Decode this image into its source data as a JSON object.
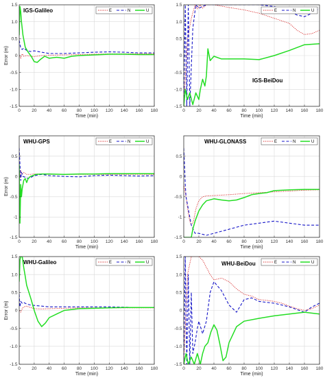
{
  "figure": {
    "colors": {
      "E": "#d62020",
      "N": "#1515c8",
      "U": "#22dd22",
      "grid": "#d9d9d9",
      "axis": "#333333"
    }
  },
  "chart_data": [
    {
      "type": "line",
      "title": "IGS-Galileo",
      "xlabel": "Time (min)",
      "ylabel": "Error (m)",
      "xlim": [
        0,
        180
      ],
      "ylim": [
        -1.5,
        1.5
      ],
      "xticks": [
        0,
        20,
        40,
        60,
        80,
        100,
        120,
        140,
        160,
        180
      ],
      "yticks": [
        -1.5,
        -1,
        -0.5,
        0,
        0.5,
        1,
        1.5
      ],
      "ytick_labels": [
        "-1.5",
        "-1.0",
        "-0.5",
        "0",
        "0.5",
        "1.0",
        "1.5"
      ],
      "grid": true,
      "legend_position": "top-right",
      "series": [
        {
          "name": "E",
          "style": "dotted",
          "x": [
            0,
            2,
            4,
            6,
            10,
            15,
            20,
            30,
            40,
            60,
            80,
            100,
            120,
            140,
            160,
            180
          ],
          "y": [
            0.02,
            -0.08,
            0.05,
            -0.02,
            0.0,
            -0.02,
            -0.03,
            0.0,
            0.01,
            0.02,
            0.03,
            0.04,
            0.05,
            0.05,
            0.05,
            0.05
          ]
        },
        {
          "name": "N",
          "style": "dashed",
          "x": [
            0,
            2,
            4,
            6,
            10,
            15,
            20,
            30,
            40,
            60,
            80,
            100,
            120,
            140,
            160,
            180
          ],
          "y": [
            0.45,
            0.22,
            0.18,
            0.22,
            0.15,
            0.12,
            0.14,
            0.1,
            0.06,
            0.06,
            0.08,
            0.1,
            0.11,
            0.1,
            0.08,
            0.08
          ]
        },
        {
          "name": "U",
          "style": "solid",
          "x": [
            0,
            1,
            2,
            3,
            5,
            8,
            12,
            16,
            20,
            24,
            28,
            34,
            40,
            50,
            60,
            70,
            80,
            100,
            120,
            140,
            160,
            180
          ],
          "y": [
            0.6,
            1.45,
            1.3,
            1.0,
            0.6,
            0.25,
            0.1,
            -0.02,
            -0.18,
            -0.2,
            -0.12,
            -0.02,
            -0.08,
            -0.05,
            -0.08,
            -0.02,
            0.0,
            0.02,
            0.04,
            0.04,
            0.03,
            0.03
          ]
        }
      ]
    },
    {
      "type": "line",
      "title": "IGS-BeiDou",
      "xlabel": "Time (min)",
      "ylabel": "",
      "xlim": [
        0,
        180
      ],
      "ylim": [
        -1.5,
        1.5
      ],
      "xticks": [
        0,
        20,
        40,
        60,
        80,
        100,
        120,
        140,
        160,
        180
      ],
      "yticks": [
        -1.5,
        -1,
        -0.5,
        0,
        0.5,
        1,
        1.5
      ],
      "ytick_labels": [
        "-1.5",
        "-1.0",
        "-0.5",
        "0",
        "0.5",
        "1.0",
        "1.5"
      ],
      "grid": true,
      "legend_position": "top-right",
      "series": [
        {
          "name": "E",
          "style": "dotted",
          "x": [
            0,
            5,
            10,
            15,
            18,
            22,
            25,
            30,
            40,
            60,
            80,
            100,
            120,
            140,
            150,
            160,
            170,
            180
          ],
          "y": [
            -1.5,
            0.5,
            1.1,
            1.5,
            1.38,
            1.5,
            1.4,
            1.5,
            1.5,
            1.42,
            1.35,
            1.25,
            1.1,
            0.95,
            0.75,
            0.62,
            0.65,
            0.75
          ]
        },
        {
          "name": "N",
          "style": "dashed",
          "x": [
            0,
            2,
            4,
            6,
            8,
            12,
            16,
            20,
            30,
            40,
            60,
            80,
            100,
            120,
            140,
            150,
            160,
            170,
            180
          ],
          "y": [
            -1.5,
            1.5,
            -1.5,
            1.5,
            -1.5,
            0.8,
            1.5,
            1.4,
            1.5,
            1.5,
            1.5,
            1.5,
            1.5,
            1.45,
            1.3,
            1.2,
            1.15,
            1.25,
            1.4
          ]
        },
        {
          "name": "U",
          "style": "solid",
          "x": [
            0,
            2,
            5,
            8,
            12,
            16,
            20,
            22,
            25,
            28,
            30,
            32,
            35,
            40,
            50,
            60,
            80,
            100,
            120,
            140,
            160,
            180
          ],
          "y": [
            -1.5,
            -1.0,
            -1.3,
            -1.1,
            -1.45,
            -1.1,
            -1.3,
            -1.0,
            -0.7,
            -0.9,
            -0.6,
            0.2,
            -0.15,
            -0.02,
            -0.1,
            -0.1,
            -0.1,
            -0.12,
            0.0,
            0.15,
            0.32,
            0.35
          ]
        }
      ]
    },
    {
      "type": "line",
      "title": "WHU-GPS",
      "xlabel": "Time (min)",
      "ylabel": "Error (m)",
      "xlim": [
        0,
        180
      ],
      "ylim": [
        -1.5,
        1.0
      ],
      "xticks": [
        0,
        20,
        40,
        60,
        80,
        100,
        120,
        140,
        160,
        180
      ],
      "yticks": [
        -1.5,
        -1,
        -0.5,
        0,
        0.5
      ],
      "ytick_labels": [
        "-1.5",
        "-1",
        "-0.5",
        "0",
        "0.5"
      ],
      "grid": true,
      "legend_position": "top-right",
      "series": [
        {
          "name": "E",
          "style": "dotted",
          "x": [
            0,
            1,
            2,
            4,
            6,
            10,
            15,
            20,
            30,
            40,
            60,
            80,
            100,
            120,
            140,
            160,
            180
          ],
          "y": [
            0.2,
            -0.05,
            0.15,
            0.05,
            0.1,
            0.05,
            0.05,
            0.06,
            0.06,
            0.05,
            0.05,
            0.05,
            0.05,
            0.05,
            0.05,
            0.05,
            0.05
          ]
        },
        {
          "name": "N",
          "style": "dashed",
          "x": [
            0,
            1,
            2,
            3,
            5,
            8,
            12,
            16,
            20,
            30,
            40,
            60,
            80,
            100,
            120,
            140,
            160,
            180
          ],
          "y": [
            0.7,
            0.3,
            -0.1,
            0.1,
            0.0,
            -0.02,
            -0.05,
            -0.02,
            0.02,
            0.05,
            0.02,
            0.0,
            -0.01,
            0.02,
            0.03,
            0.02,
            0.01,
            0.02
          ]
        },
        {
          "name": "U",
          "style": "solid",
          "x": [
            0,
            1,
            2,
            3,
            4,
            6,
            8,
            10,
            12,
            15,
            18,
            22,
            30,
            40,
            60,
            80,
            100,
            120,
            140,
            160,
            180
          ],
          "y": [
            0.3,
            -1.15,
            -0.2,
            -0.5,
            -0.3,
            -0.1,
            -0.05,
            -0.15,
            -0.05,
            0.0,
            0.02,
            0.05,
            0.06,
            0.06,
            0.05,
            0.06,
            0.06,
            0.07,
            0.07,
            0.07,
            0.07
          ]
        }
      ]
    },
    {
      "type": "line",
      "title": "WHU-GLONASS",
      "xlabel": "Time (min)",
      "ylabel": "",
      "xlim": [
        0,
        180
      ],
      "ylim": [
        -1.5,
        1.0
      ],
      "xticks": [
        0,
        20,
        40,
        60,
        80,
        100,
        120,
        140,
        160,
        180
      ],
      "yticks": [
        -1.5,
        -1,
        -0.5,
        0,
        0.5
      ],
      "ytick_labels": [
        "-1.5",
        "-1",
        "-0.5",
        "0",
        "0.5"
      ],
      "grid": true,
      "legend_position": "top-right",
      "series": [
        {
          "name": "E",
          "style": "dotted",
          "x": [
            0,
            3,
            6,
            8,
            10,
            13,
            16,
            20,
            25,
            30,
            40,
            60,
            80,
            100,
            120,
            140,
            160,
            180
          ],
          "y": [
            -0.2,
            -0.5,
            -0.9,
            -1.1,
            -1.2,
            -1.1,
            -0.8,
            -0.6,
            -0.5,
            -0.48,
            -0.47,
            -0.45,
            -0.42,
            -0.4,
            -0.38,
            -0.36,
            -0.34,
            -0.33
          ]
        },
        {
          "name": "N",
          "style": "dashed",
          "x": [
            0,
            1,
            2,
            3,
            5,
            8,
            10,
            15,
            20,
            30,
            40,
            50,
            60,
            80,
            100,
            120,
            140,
            160,
            180
          ],
          "y": [
            0.7,
            0.3,
            -0.2,
            -0.5,
            -0.7,
            -1.0,
            -1.2,
            -1.4,
            -1.4,
            -1.45,
            -1.4,
            -1.35,
            -1.3,
            -1.2,
            -1.15,
            -1.1,
            -1.15,
            -1.2,
            -1.2
          ]
        },
        {
          "name": "U",
          "style": "solid",
          "x": [
            0,
            5,
            10,
            12,
            15,
            18,
            20,
            25,
            30,
            40,
            50,
            60,
            70,
            80,
            90,
            100,
            110,
            120,
            140,
            160,
            180
          ],
          "y": [
            -1.5,
            -1.5,
            -1.5,
            -1.3,
            -1.1,
            -0.95,
            -0.85,
            -0.7,
            -0.6,
            -0.55,
            -0.58,
            -0.6,
            -0.58,
            -0.52,
            -0.45,
            -0.42,
            -0.4,
            -0.35,
            -0.33,
            -0.32,
            -0.32
          ]
        }
      ]
    },
    {
      "type": "line",
      "title": "WHU-Galileo",
      "xlabel": "Time (min)",
      "ylabel": "Error (m)",
      "xlim": [
        0,
        180
      ],
      "ylim": [
        -1.5,
        1.5
      ],
      "xticks": [
        0,
        20,
        40,
        60,
        80,
        100,
        120,
        140,
        160,
        180
      ],
      "yticks": [
        -1.5,
        -1,
        -0.5,
        0,
        0.5,
        1,
        1.5
      ],
      "ytick_labels": [
        "-1.5",
        "-1.0",
        "-0.5",
        "0",
        "0.5",
        "1.0",
        "1.5"
      ],
      "grid": true,
      "legend_position": "top-right",
      "series": [
        {
          "name": "E",
          "style": "dotted",
          "x": [
            0,
            2,
            4,
            6,
            10,
            15,
            20,
            30,
            40,
            60,
            80,
            100,
            120,
            140,
            160,
            180
          ],
          "y": [
            0.0,
            -0.05,
            0.05,
            0.1,
            0.12,
            0.08,
            0.05,
            0.04,
            0.05,
            0.06,
            0.07,
            0.07,
            0.07,
            0.07,
            0.07,
            0.07
          ]
        },
        {
          "name": "N",
          "style": "dashed",
          "x": [
            0,
            1,
            2,
            4,
            6,
            10,
            15,
            20,
            30,
            40,
            60,
            80,
            100,
            120,
            140,
            160,
            180
          ],
          "y": [
            0.45,
            0.1,
            0.25,
            0.2,
            0.22,
            0.18,
            0.15,
            0.14,
            0.12,
            0.1,
            0.1,
            0.1,
            0.1,
            0.1,
            0.09,
            0.08,
            0.08
          ]
        },
        {
          "name": "U",
          "style": "solid",
          "x": [
            0,
            1,
            2,
            4,
            6,
            8,
            10,
            13,
            16,
            20,
            25,
            30,
            35,
            40,
            50,
            60,
            80,
            100,
            120,
            140,
            160,
            180
          ],
          "y": [
            0.8,
            1.4,
            1.5,
            1.5,
            1.2,
            0.95,
            0.7,
            0.5,
            0.3,
            0.0,
            -0.3,
            -0.45,
            -0.35,
            -0.2,
            -0.1,
            0.0,
            0.05,
            0.06,
            0.07,
            0.08,
            0.08,
            0.08
          ]
        }
      ]
    },
    {
      "type": "line",
      "title": "WHU-BeiDou",
      "xlabel": "Time (min)",
      "ylabel": "",
      "xlim": [
        0,
        180
      ],
      "ylim": [
        -1.5,
        1.5
      ],
      "xticks": [
        0,
        20,
        40,
        60,
        80,
        100,
        120,
        140,
        160,
        180
      ],
      "yticks": [
        -1.5,
        -1,
        -0.5,
        0,
        0.5,
        1,
        1.5
      ],
      "ytick_labels": [
        "-1.5",
        "-1.0",
        "-0.5",
        "0",
        "0.5",
        "1.0",
        "1.5"
      ],
      "grid": true,
      "legend_position": "top-right",
      "series": [
        {
          "name": "E",
          "style": "dotted",
          "x": [
            0,
            5,
            10,
            15,
            20,
            25,
            30,
            35,
            40,
            50,
            60,
            70,
            80,
            90,
            100,
            110,
            120,
            130,
            140,
            150,
            160,
            170,
            180
          ],
          "y": [
            -1.5,
            1.0,
            1.5,
            1.5,
            1.5,
            1.4,
            1.2,
            1.0,
            0.85,
            0.9,
            0.8,
            0.6,
            0.45,
            0.4,
            0.3,
            0.28,
            0.25,
            0.2,
            0.12,
            0.05,
            0.0,
            0.05,
            0.15
          ]
        },
        {
          "name": "N",
          "style": "dashed",
          "x": [
            0,
            2,
            4,
            6,
            8,
            10,
            12,
            15,
            18,
            20,
            25,
            30,
            35,
            40,
            50,
            60,
            70,
            80,
            90,
            100,
            120,
            140,
            160,
            170,
            180
          ],
          "y": [
            -1.5,
            1.5,
            -1.5,
            1.0,
            -1.5,
            0.5,
            -1.2,
            -0.9,
            -0.5,
            -0.3,
            -0.65,
            -0.3,
            0.5,
            0.8,
            0.55,
            0.15,
            -0.05,
            0.3,
            0.35,
            0.25,
            0.2,
            0.1,
            -0.05,
            0.1,
            0.2
          ]
        },
        {
          "name": "U",
          "style": "solid",
          "x": [
            0,
            3,
            6,
            10,
            14,
            18,
            22,
            25,
            28,
            32,
            36,
            40,
            44,
            48,
            52,
            56,
            60,
            70,
            80,
            100,
            120,
            140,
            160,
            180
          ],
          "y": [
            -1.5,
            -1.2,
            -1.5,
            -1.3,
            -1.5,
            -1.2,
            -1.5,
            -1.2,
            -1.0,
            -0.9,
            -0.6,
            -0.4,
            -0.55,
            -0.95,
            -1.4,
            -1.3,
            -0.9,
            -0.45,
            -0.3,
            -0.22,
            -0.15,
            -0.1,
            -0.05,
            -0.1
          ]
        }
      ]
    }
  ]
}
